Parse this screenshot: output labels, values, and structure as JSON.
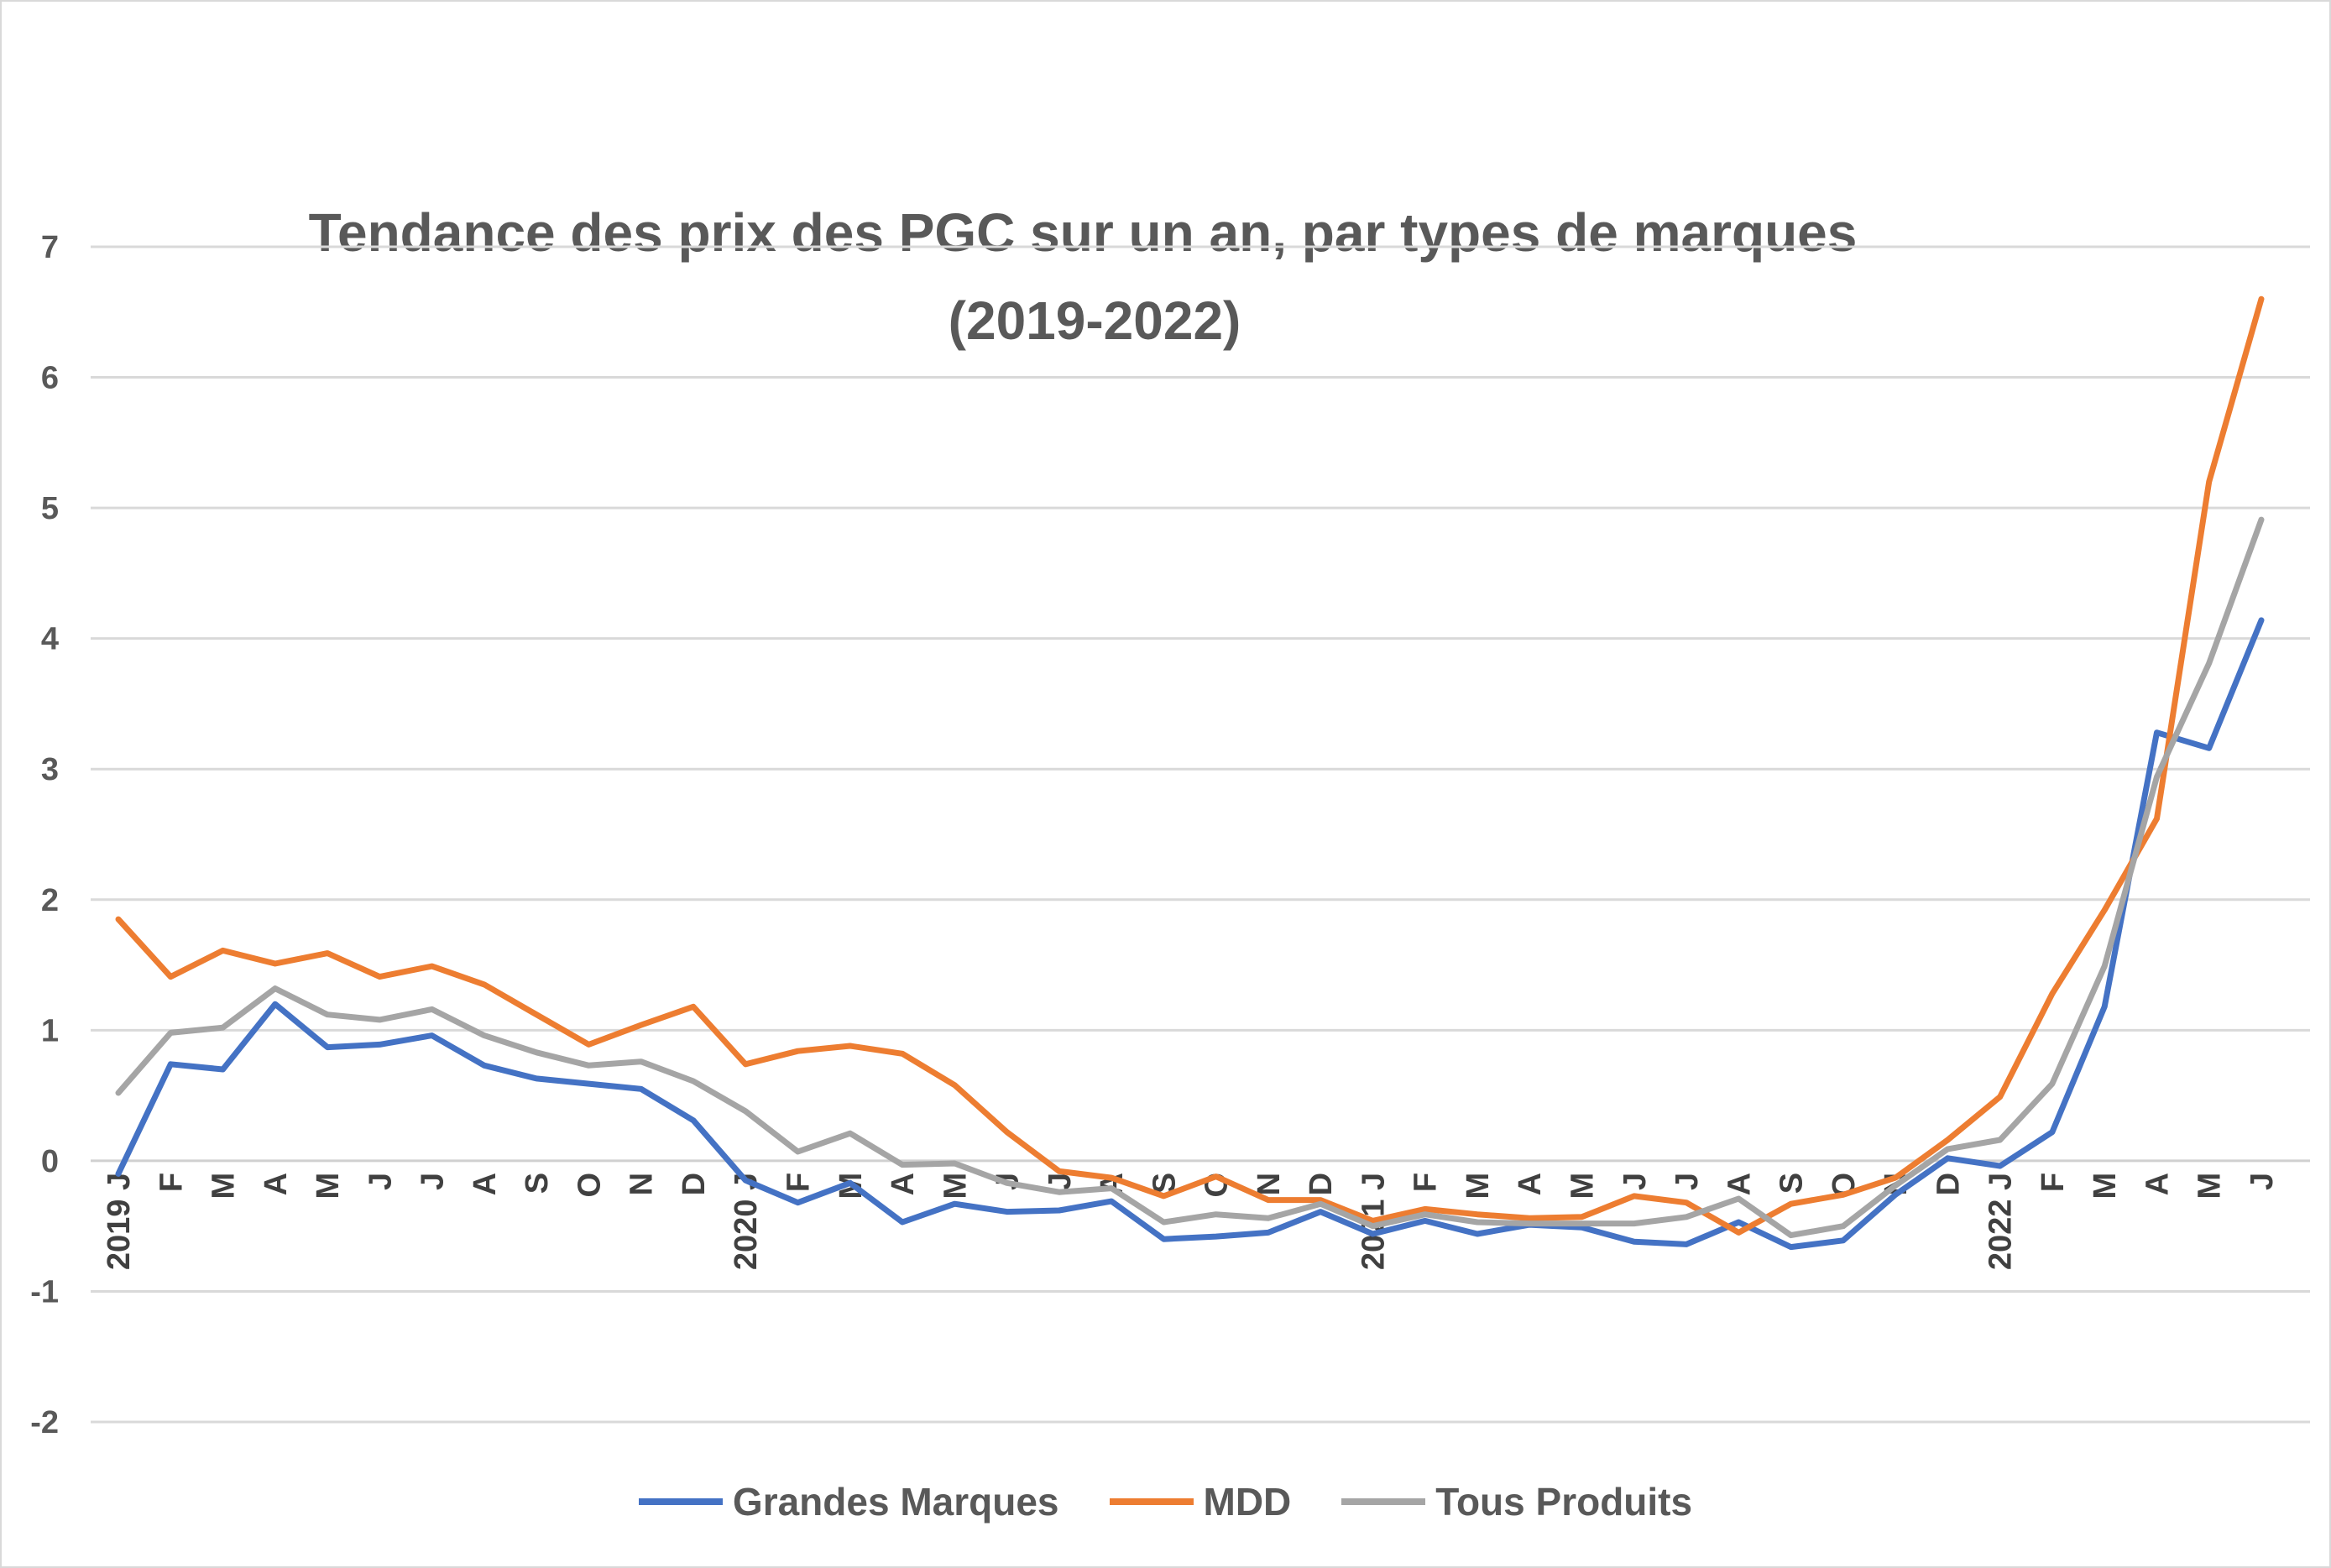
{
  "chart_data": {
    "type": "line",
    "title": "Tendance des prix des PGC sur un an, par types de marques",
    "subtitle": "(2019-2022)",
    "xlabel": "",
    "ylabel": "",
    "ylim": [
      -2,
      7
    ],
    "yticks": [
      "7",
      "6",
      "5",
      "4",
      "3",
      "2",
      "1",
      "0",
      "-1",
      "-2"
    ],
    "grid": true,
    "legend": "bottom",
    "categories": [
      "2019 J",
      "F",
      "M",
      "A",
      "M",
      "J",
      "J",
      "A",
      "S",
      "O",
      "N",
      "D",
      "2020 J",
      "F",
      "M",
      "A",
      "M",
      "J",
      "J",
      "A",
      "S",
      "O",
      "N",
      "D",
      "2021 J",
      "F",
      "M",
      "A",
      "M",
      "J",
      "J",
      "A",
      "S",
      "O",
      "N",
      "D",
      "2022 J",
      "F",
      "M",
      "A",
      "M",
      "J"
    ],
    "series": [
      {
        "name": "Grandes Marques",
        "color": "#4472c4",
        "values": [
          -0.1,
          0.74,
          0.7,
          1.2,
          0.87,
          0.89,
          0.96,
          0.73,
          0.63,
          0.59,
          0.55,
          0.31,
          -0.15,
          -0.32,
          -0.17,
          -0.47,
          -0.33,
          -0.39,
          -0.38,
          -0.31,
          -0.6,
          -0.58,
          -0.55,
          -0.39,
          -0.56,
          -0.46,
          -0.56,
          -0.49,
          -0.51,
          -0.62,
          -0.64,
          -0.47,
          -0.66,
          -0.61,
          -0.26,
          0.02,
          -0.04,
          0.22,
          1.18,
          3.28,
          3.16,
          4.14
        ]
      },
      {
        "name": "MDD",
        "color": "#ed7d31",
        "values": [
          1.85,
          1.41,
          1.61,
          1.51,
          1.59,
          1.41,
          1.49,
          1.35,
          1.12,
          0.89,
          1.04,
          1.18,
          0.74,
          0.84,
          0.88,
          0.82,
          0.58,
          0.22,
          -0.08,
          -0.13,
          -0.27,
          -0.12,
          -0.3,
          -0.3,
          -0.46,
          -0.37,
          -0.41,
          -0.44,
          -0.43,
          -0.27,
          -0.32,
          -0.55,
          -0.33,
          -0.26,
          -0.13,
          0.16,
          0.49,
          1.28,
          1.92,
          2.62,
          5.2,
          6.6
        ]
      },
      {
        "name": "Tous Produits",
        "color": "#a5a5a5",
        "values": [
          0.52,
          0.98,
          1.02,
          1.32,
          1.12,
          1.08,
          1.16,
          0.96,
          0.83,
          0.73,
          0.76,
          0.61,
          0.38,
          0.07,
          0.21,
          -0.03,
          -0.02,
          -0.17,
          -0.24,
          -0.21,
          -0.47,
          -0.41,
          -0.44,
          -0.33,
          -0.5,
          -0.41,
          -0.47,
          -0.48,
          -0.48,
          -0.48,
          -0.43,
          -0.29,
          -0.57,
          -0.5,
          -0.19,
          0.09,
          0.16,
          0.59,
          1.49,
          2.94,
          3.81,
          4.91
        ]
      }
    ]
  }
}
